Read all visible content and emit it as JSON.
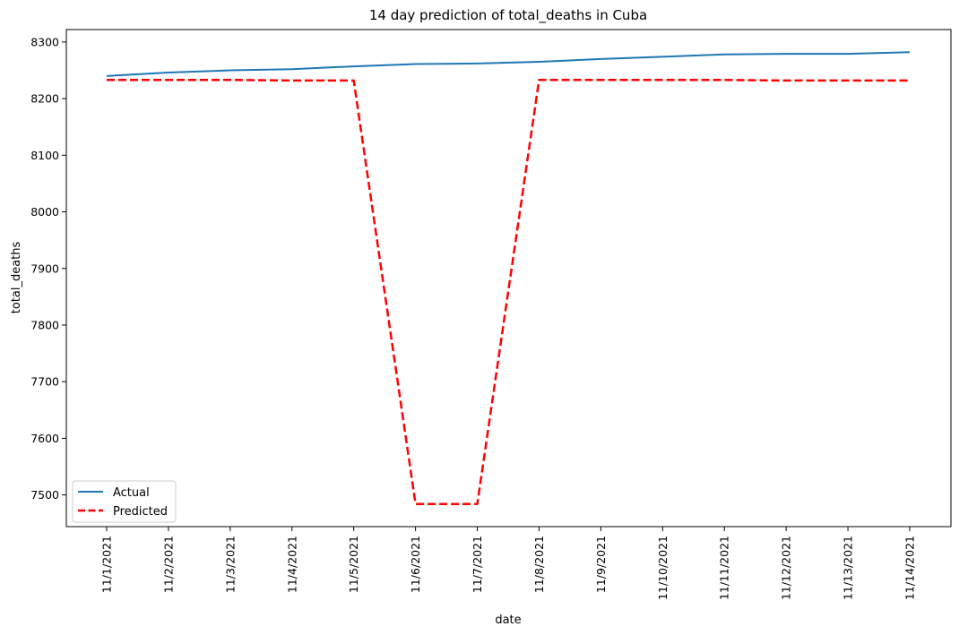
{
  "chart_data": {
    "type": "line",
    "title": "14 day prediction of total_deaths in Cuba",
    "xlabel": "date",
    "ylabel": "total_deaths",
    "x": [
      "11/1/2021",
      "11/2/2021",
      "11/3/2021",
      "11/4/2021",
      "11/5/2021",
      "11/6/2021",
      "11/7/2021",
      "11/8/2021",
      "11/9/2021",
      "11/10/2021",
      "11/11/2021",
      "11/12/2021",
      "11/13/2021",
      "11/14/2021"
    ],
    "ylim": [
      7444,
      8322
    ],
    "yticks": [
      7500,
      7600,
      7700,
      7800,
      7900,
      8000,
      8100,
      8200,
      8300
    ],
    "grid": false,
    "legend_position": "lower-left",
    "series": [
      {
        "name": "Actual",
        "color": "#1f77b4",
        "style": "solid",
        "values": [
          8240,
          8246,
          8250,
          8252,
          8257,
          8261,
          8262,
          8265,
          8270,
          8274,
          8278,
          8279,
          8279,
          8282
        ]
      },
      {
        "name": "Predicted",
        "color": "#ff0000",
        "style": "dashed",
        "values": [
          8233,
          8233,
          8233,
          8232,
          8232,
          7484,
          7484,
          8233,
          8233,
          8233,
          8233,
          8232,
          8232,
          8232
        ]
      }
    ]
  }
}
